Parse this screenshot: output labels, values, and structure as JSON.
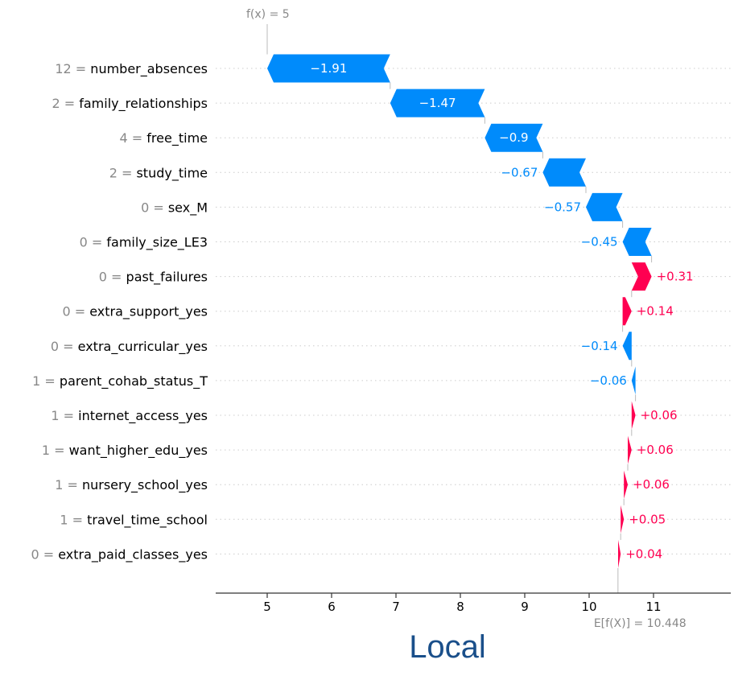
{
  "panel_title": "Local",
  "chart_data": {
    "type": "waterfall",
    "base_value": 10.448,
    "output_value": 5,
    "base_label": "E[f(X)] = 10.448",
    "output_label": "f(x) = 5",
    "xlim": [
      4.2,
      12.2
    ],
    "xticks": [
      5,
      6,
      7,
      8,
      9,
      10,
      11
    ],
    "colors": {
      "positive": "#ff0051",
      "negative": "#008bfb",
      "grid": "#cccccc",
      "axis": "#333333"
    },
    "features": [
      {
        "value": "12",
        "name": "number_absences",
        "shap": -1.91,
        "label": "−1.91"
      },
      {
        "value": "2",
        "name": "family_relationships",
        "shap": -1.47,
        "label": "−1.47"
      },
      {
        "value": "4",
        "name": "free_time",
        "shap": -0.9,
        "label": "−0.9"
      },
      {
        "value": "2",
        "name": "study_time",
        "shap": -0.67,
        "label": "−0.67"
      },
      {
        "value": "0",
        "name": "sex_M",
        "shap": -0.57,
        "label": "−0.57"
      },
      {
        "value": "0",
        "name": "family_size_LE3",
        "shap": -0.45,
        "label": "−0.45"
      },
      {
        "value": "0",
        "name": "past_failures",
        "shap": 0.31,
        "label": "+0.31"
      },
      {
        "value": "0",
        "name": "extra_support_yes",
        "shap": 0.14,
        "label": "+0.14"
      },
      {
        "value": "0",
        "name": "extra_curricular_yes",
        "shap": -0.14,
        "label": "−0.14"
      },
      {
        "value": "1",
        "name": "parent_cohab_status_T",
        "shap": -0.06,
        "label": "−0.06"
      },
      {
        "value": "1",
        "name": "internet_access_yes",
        "shap": 0.06,
        "label": "+0.06"
      },
      {
        "value": "1",
        "name": "want_higher_edu_yes",
        "shap": 0.06,
        "label": "+0.06"
      },
      {
        "value": "1",
        "name": "nursery_school_yes",
        "shap": 0.06,
        "label": "+0.06"
      },
      {
        "value": "1",
        "name": "travel_time_school",
        "shap": 0.05,
        "label": "+0.05"
      },
      {
        "value": "0",
        "name": "extra_paid_classes_yes",
        "shap": 0.04,
        "label": "+0.04"
      }
    ]
  }
}
